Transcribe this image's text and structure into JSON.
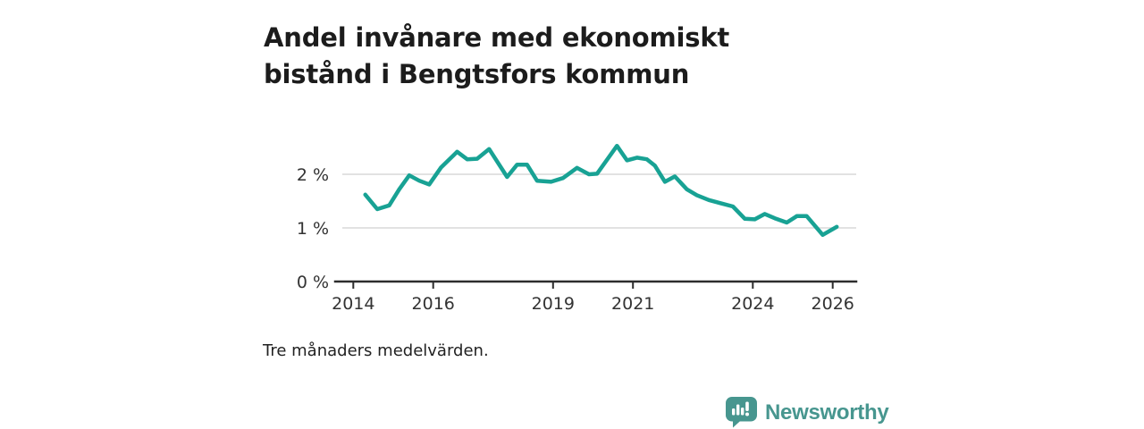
{
  "brand": {
    "name": "Newsworthy",
    "icon": "bar-chart-speech-bubble-icon",
    "color": "#47968F"
  },
  "chart_data": {
    "type": "line",
    "title": "Andel invånare med ekonomiskt bistånd i Bengtsfors kommun",
    "footnote": "Tre månaders medelvärden.",
    "xlabel": "",
    "ylabel": "",
    "unit": "%",
    "xlim": [
      2013.8,
      2026.8
    ],
    "ylim": [
      0,
      2.75
    ],
    "grid": true,
    "legend": "none",
    "colors": {
      "line": "#18A294",
      "grid": "#D9D9D9",
      "axis": "#2D2D2D",
      "text": "#333333"
    },
    "xticks": {
      "values": [
        2014,
        2016,
        2019,
        2021,
        2024,
        2026
      ],
      "labels": [
        "2014",
        "2016",
        "2019",
        "2021",
        "2024",
        "2026"
      ]
    },
    "yticks": {
      "values": [
        0,
        1,
        2
      ],
      "labels": [
        "0 %",
        "1 %",
        "2 %"
      ]
    },
    "series": [
      {
        "name": "Andel invånare med ekonomiskt bistånd",
        "x": [
          2014.3,
          2014.6,
          2014.9,
          2015.15,
          2015.4,
          2015.65,
          2015.9,
          2016.2,
          2016.6,
          2016.85,
          2017.1,
          2017.4,
          2017.85,
          2018.1,
          2018.35,
          2018.6,
          2018.95,
          2019.25,
          2019.6,
          2019.9,
          2020.1,
          2020.6,
          2020.85,
          2021.1,
          2021.35,
          2021.55,
          2021.8,
          2022.05,
          2022.35,
          2022.6,
          2022.9,
          2023.2,
          2023.5,
          2023.8,
          2024.05,
          2024.3,
          2024.55,
          2024.85,
          2025.1,
          2025.35,
          2025.75,
          2026.1
        ],
        "y": [
          1.62,
          1.35,
          1.42,
          1.72,
          1.98,
          1.88,
          1.81,
          2.13,
          2.42,
          2.28,
          2.29,
          2.47,
          1.95,
          2.18,
          2.18,
          1.88,
          1.86,
          1.93,
          2.12,
          2.0,
          2.01,
          2.53,
          2.26,
          2.31,
          2.28,
          2.16,
          1.86,
          1.96,
          1.72,
          1.61,
          1.52,
          1.46,
          1.4,
          1.17,
          1.16,
          1.26,
          1.18,
          1.1,
          1.22,
          1.22,
          0.87,
          1.02
        ]
      }
    ]
  }
}
